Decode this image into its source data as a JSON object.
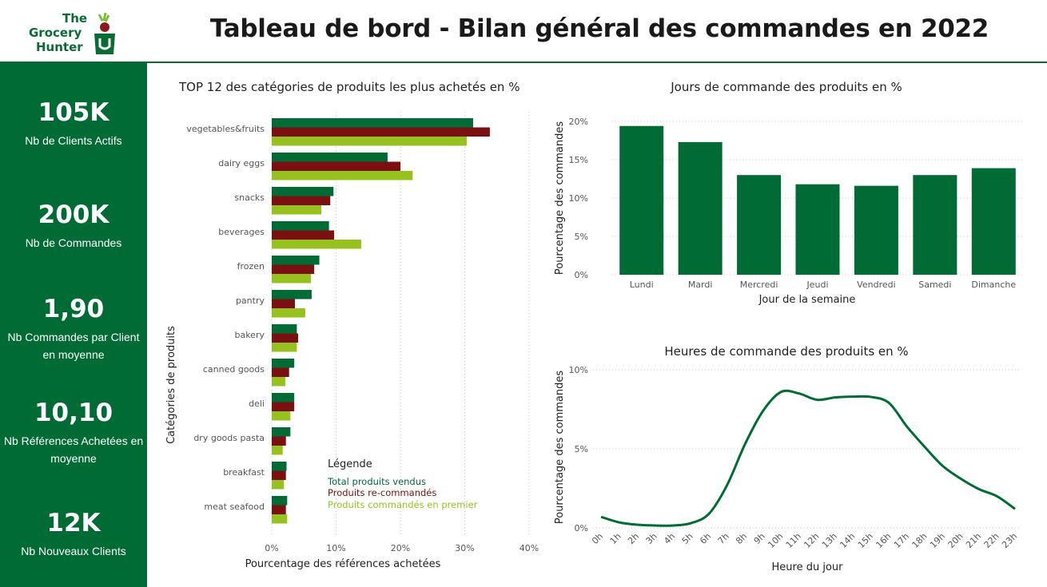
{
  "header": {
    "logo_lines": [
      "The",
      "Grocery",
      "Hunter"
    ],
    "title": "Tableau de bord - Bilan général des commandes en 2022"
  },
  "kpis": [
    {
      "value": "105K",
      "label": "Nb de Clients Actifs"
    },
    {
      "value": "200K",
      "label": "Nb de Commandes"
    },
    {
      "value": "1,90",
      "label": "Nb Commandes par Client en moyenne"
    },
    {
      "value": "10,10",
      "label": "Nb Références Achetées en moyenne"
    },
    {
      "value": "12K",
      "label": "Nb Nouveaux Clients"
    }
  ],
  "colors": {
    "dark_green": "#006b35",
    "dark_red": "#7a1010",
    "light_green": "#97c11f"
  },
  "chart_data": [
    {
      "type": "bar",
      "orientation": "horizontal",
      "title": "TOP 12 des catégories de produits les plus achetés en %",
      "xlabel": "Pourcentage des références achetées",
      "ylabel": "Catégories de produits",
      "xlim": [
        0,
        40
      ],
      "xticks": [
        "0%",
        "10%",
        "20%",
        "30%",
        "40%"
      ],
      "categories": [
        "vegetables&fruits",
        "dairy eggs",
        "snacks",
        "beverages",
        "frozen",
        "pantry",
        "bakery",
        "canned goods",
        "deli",
        "dry goods pasta",
        "breakfast",
        "meat seafood"
      ],
      "legend_title": "Légende",
      "series": [
        {
          "name": "Total produits vendus",
          "color": "#006b35",
          "values": [
            31.3,
            18.0,
            9.6,
            8.9,
            7.4,
            6.2,
            3.9,
            3.5,
            3.5,
            2.9,
            2.3,
            2.4
          ]
        },
        {
          "name": "Produits re-commandés",
          "color": "#7a1010",
          "values": [
            33.9,
            20.0,
            9.1,
            9.7,
            6.6,
            3.6,
            4.1,
            2.7,
            3.5,
            2.2,
            2.2,
            2.2
          ]
        },
        {
          "name": "Produits commandés en premier",
          "color": "#97c11f",
          "values": [
            30.3,
            21.9,
            7.7,
            13.9,
            6.1,
            5.2,
            3.9,
            2.1,
            2.9,
            1.7,
            1.9,
            2.4
          ]
        }
      ]
    },
    {
      "type": "bar",
      "title": "Jours de commande des produits en %",
      "xlabel": "Jour de la semaine",
      "ylabel": "Pourcentage des commandes",
      "ylim": [
        0,
        20
      ],
      "yticks": [
        "0%",
        "5%",
        "10%",
        "15%",
        "20%"
      ],
      "categories": [
        "Lundi",
        "Mardi",
        "Mercredi",
        "Jeudi",
        "Vendredi",
        "Samedi",
        "Dimanche"
      ],
      "values": [
        19.4,
        17.3,
        13.0,
        11.8,
        11.6,
        13.0,
        13.9
      ]
    },
    {
      "type": "line",
      "title": "Heures de commande des produits en %",
      "xlabel": "Heure du jour",
      "ylabel": "Pourcentage des commandes",
      "ylim": [
        0,
        10
      ],
      "yticks": [
        "0%",
        "5%",
        "10%"
      ],
      "x": [
        "0h",
        "1h",
        "2h",
        "3h",
        "4h",
        "5h",
        "6h",
        "7h",
        "8h",
        "9h",
        "10h",
        "11h",
        "12h",
        "13h",
        "14h",
        "15h",
        "16h",
        "17h",
        "18h",
        "19h",
        "20h",
        "21h",
        "22h",
        "23h"
      ],
      "values": [
        0.7,
        0.35,
        0.2,
        0.15,
        0.15,
        0.3,
        0.9,
        2.7,
        5.3,
        7.4,
        8.6,
        8.5,
        8.1,
        8.25,
        8.3,
        8.28,
        7.9,
        6.4,
        5.1,
        3.9,
        3.1,
        2.45,
        2.0,
        1.2
      ]
    }
  ]
}
